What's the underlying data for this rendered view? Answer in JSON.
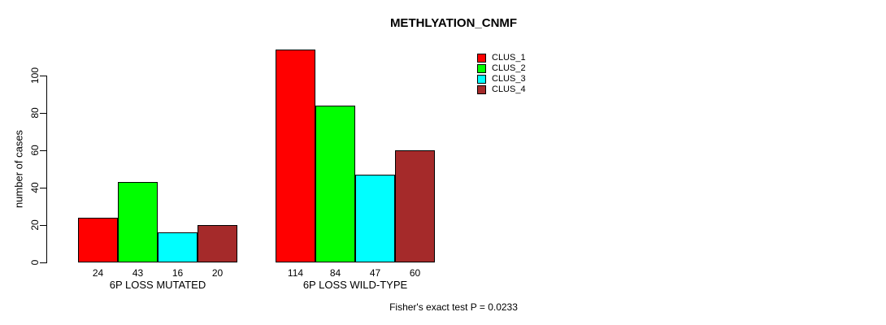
{
  "chart_data": {
    "type": "bar",
    "title": "METHLYATION_CNMF",
    "ylabel": "number of cases",
    "xlabel": "",
    "annotation": "Fisher's exact test P = 0.0233",
    "categories": [
      "6P LOSS MUTATED",
      "6P LOSS WILD-TYPE"
    ],
    "series": [
      {
        "name": "CLUS_1",
        "color": "#FF0000",
        "values": [
          24,
          114
        ]
      },
      {
        "name": "CLUS_2",
        "color": "#00FF00",
        "values": [
          43,
          84
        ]
      },
      {
        "name": "CLUS_3",
        "color": "#00FFFF",
        "values": [
          16,
          47
        ]
      },
      {
        "name": "CLUS_4",
        "color": "#A52A2A",
        "values": [
          20,
          60
        ]
      }
    ],
    "yticks": [
      0,
      20,
      40,
      60,
      80,
      100
    ],
    "ylim": [
      0,
      115
    ],
    "grid": false,
    "bar_value_labels": true,
    "legend_position": "top-right",
    "bar_border_color": "#000000",
    "background_color": "#FFFFFF"
  }
}
